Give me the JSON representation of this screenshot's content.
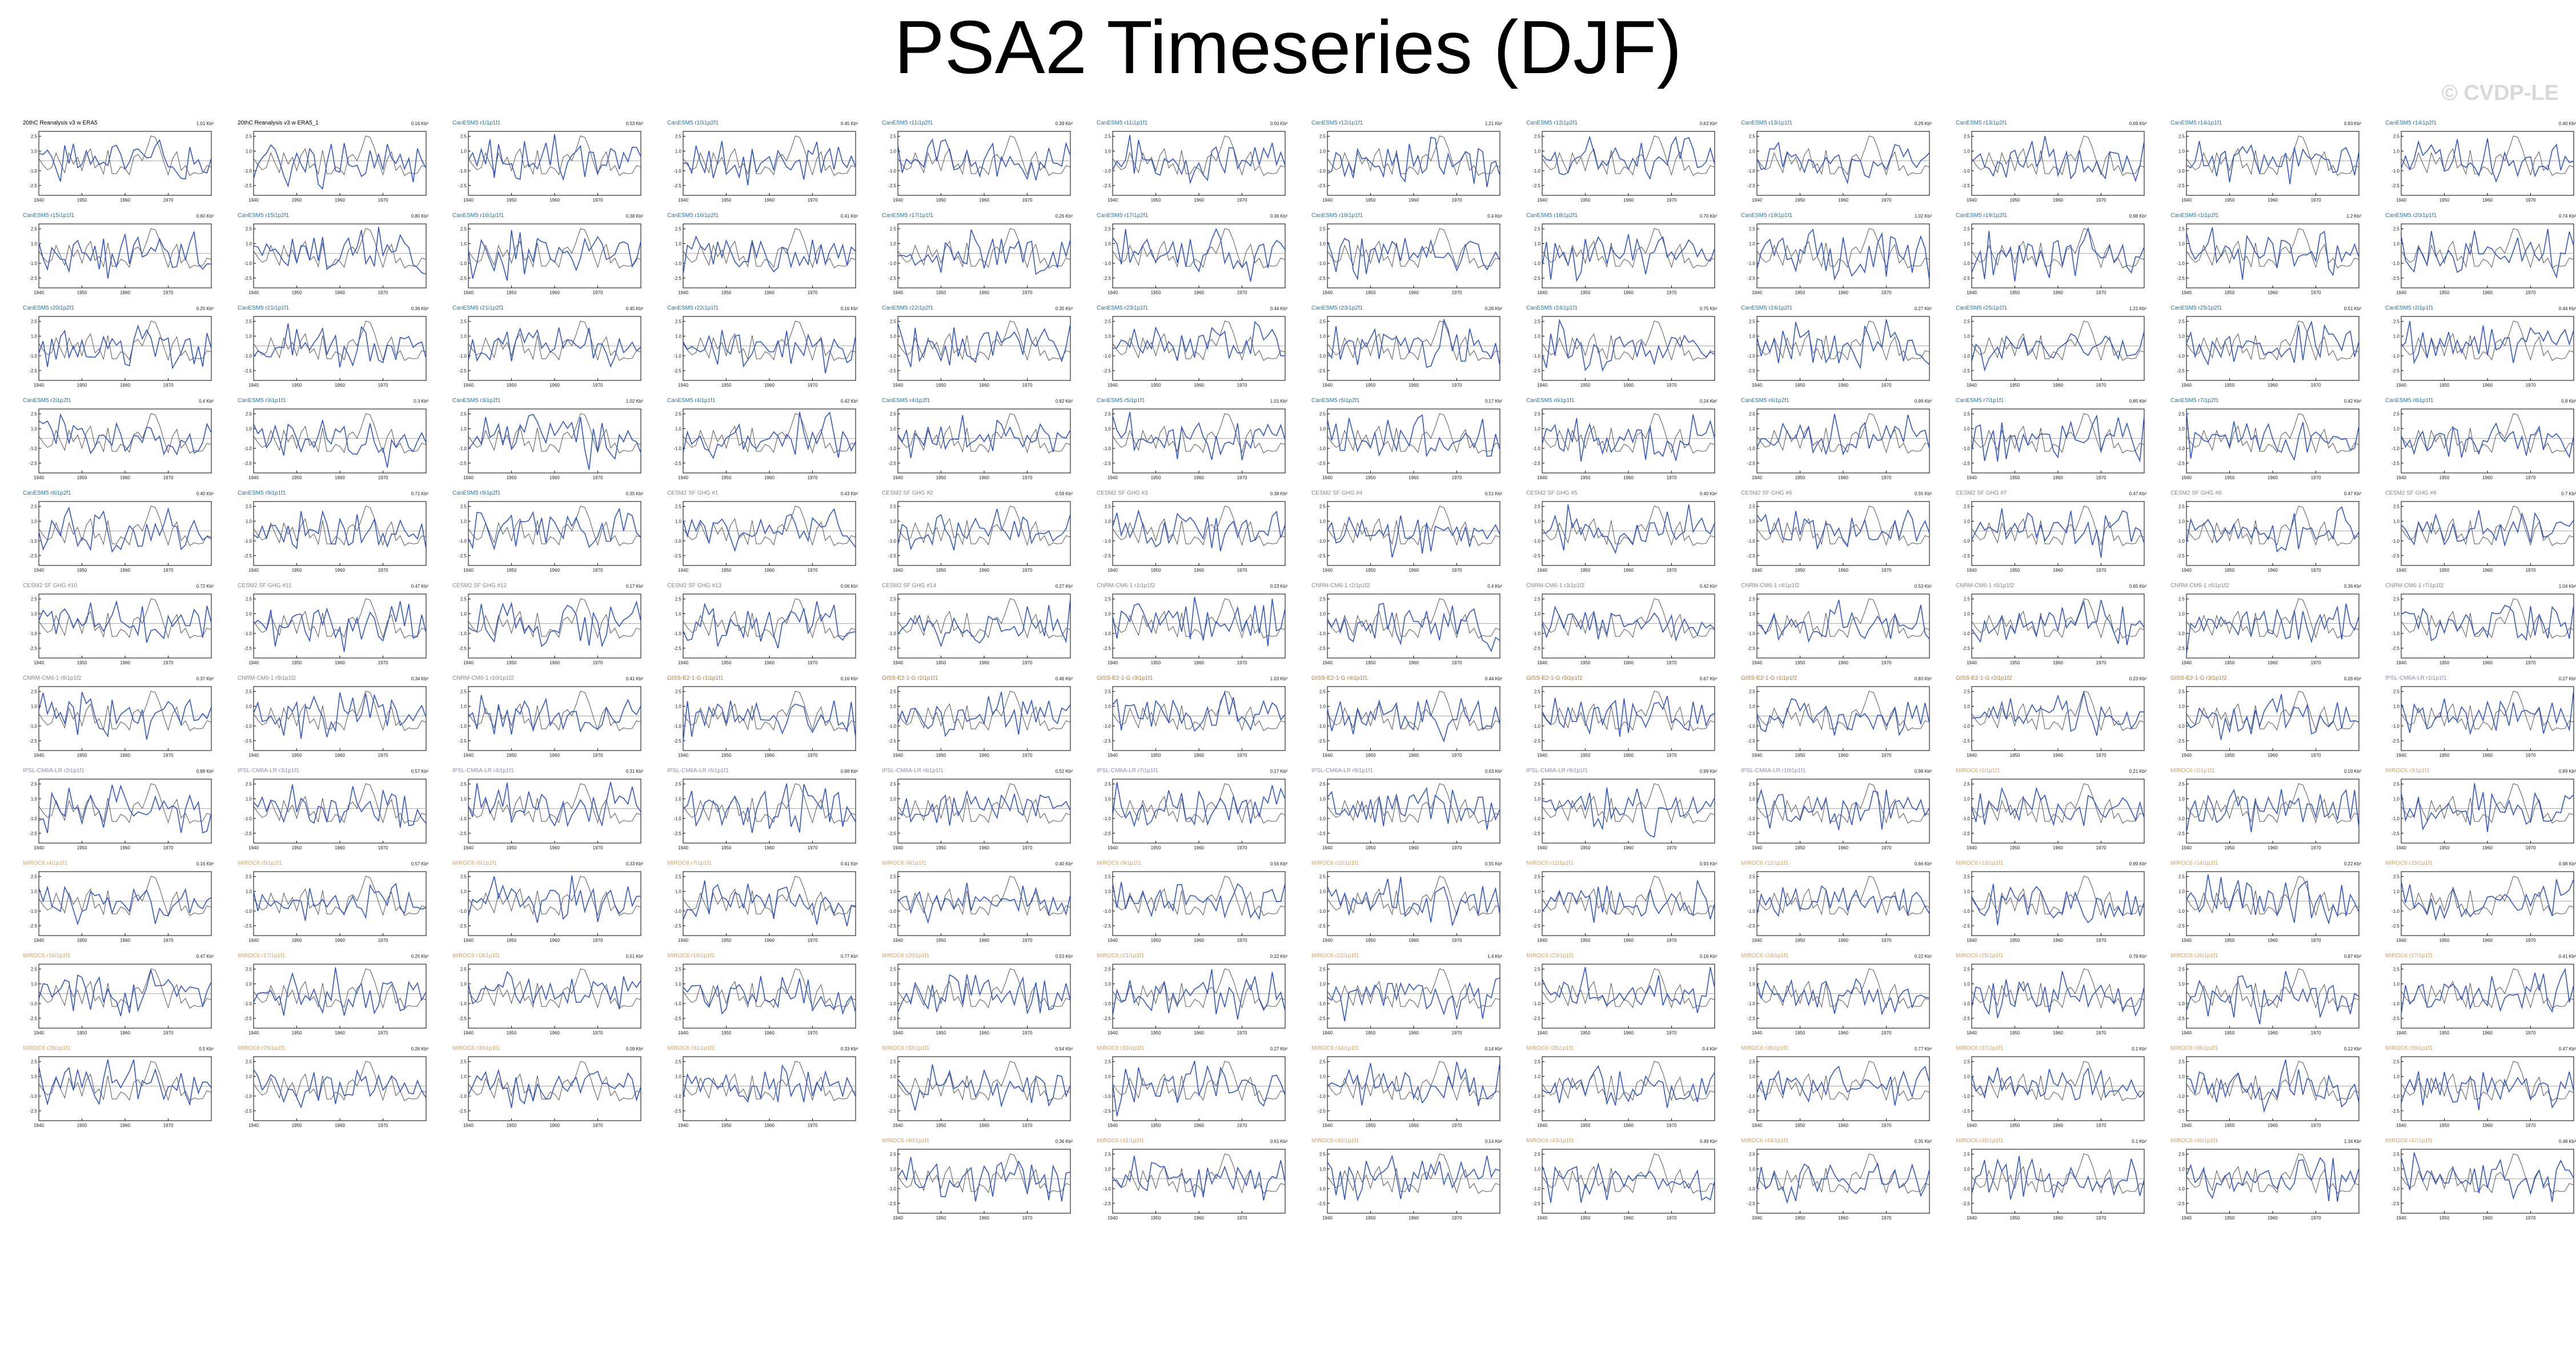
{
  "title": "PSA2 Timeseries (DJF)",
  "watermark": "© CVDP-LE",
  "colors": {
    "model": "#3356c8",
    "observed": "#555555",
    "zero_line": "#999999"
  },
  "chart_data": {
    "type": "line",
    "x_range": [
      1940,
      1980
    ],
    "x_ticks": [
      "1940",
      "1950",
      "1960",
      "1970"
    ],
    "ylim": [
      -3.5,
      3
    ],
    "y_ticks": [
      "2.5",
      "1.0",
      "-1.0",
      "-2.5"
    ],
    "panels": [
      {
        "title": "20thC Reanalysis v3 w ERA5",
        "std": "1.01 Kb²",
        "color": "#000000",
        "seed": 1
      },
      {
        "title": "20thC Reanalysis v3 w ERA5_1",
        "std": "0.16 Kb²",
        "color": "#000000",
        "seed": 2
      },
      {
        "title": "CanESM5 r1i1p1f1",
        "std": "0.53 Kb²",
        "color": "#1f77b4",
        "seed": 3
      },
      {
        "title": "CanESM5 r10i1p2f1",
        "std": "0.45 Kb²",
        "color": "#1f77b4",
        "seed": 4
      },
      {
        "title": "CanESM5 r11i1p2f1",
        "std": "0.39 Kb²",
        "color": "#1f77b4",
        "seed": 5
      },
      {
        "title": "CanESM5 r11i1p1f1",
        "std": "0.50 Kb²",
        "color": "#1f77b4",
        "seed": 6
      },
      {
        "title": "CanESM5 r12i1p1f1",
        "std": "1.21 Kb²",
        "color": "#1f77b4",
        "seed": 7
      },
      {
        "title": "CanESM5 r12i1p2f1",
        "std": "0.63 Kb²",
        "color": "#1f77b4",
        "seed": 8
      },
      {
        "title": "CanESM5 r13i1p1f1",
        "std": "0.29 Kb²",
        "color": "#1f77b4",
        "seed": 9
      },
      {
        "title": "CanESM5 r13i1p2f1",
        "std": "0.69 Kb²",
        "color": "#1f77b4",
        "seed": 10
      },
      {
        "title": "CanESM5 r14i1p1f1",
        "std": "0.83 Kb²",
        "color": "#1f77b4",
        "seed": 11
      },
      {
        "title": "CanESM5 r14i1p2f1",
        "std": "0.40 Kb²",
        "color": "#1f77b4",
        "seed": 12
      },
      {
        "title": "CanESM5 r15i1p1f1",
        "std": "0.60 Kb²",
        "color": "#1f77b4",
        "seed": 13
      },
      {
        "title": "CanESM5 r15i1p2f1",
        "std": "0.80 Kb²",
        "color": "#1f77b4",
        "seed": 14
      },
      {
        "title": "CanESM5 r16i1p1f1",
        "std": "0.38 Kb²",
        "color": "#1f77b4",
        "seed": 15
      },
      {
        "title": "CanESM5 r16i1p2f1",
        "std": "0.41 Kb²",
        "color": "#1f77b4",
        "seed": 16
      },
      {
        "title": "CanESM5 r17i1p1f1",
        "std": "0.26 Kb²",
        "color": "#1f77b4",
        "seed": 17
      },
      {
        "title": "CanESM5 r17i1p2f1",
        "std": "0.36 Kb²",
        "color": "#1f77b4",
        "seed": 18
      },
      {
        "title": "CanESM5 r18i1p1f1",
        "std": "0.4 Kb²",
        "color": "#1f77b4",
        "seed": 19
      },
      {
        "title": "CanESM5 r18i1p2f1",
        "std": "0.70 Kb²",
        "color": "#1f77b4",
        "seed": 20
      },
      {
        "title": "CanESM5 r19i1p1f1",
        "std": "1.02 Kb²",
        "color": "#1f77b4",
        "seed": 21
      },
      {
        "title": "CanESM5 r19i1p2f1",
        "std": "0.98 Kb²",
        "color": "#1f77b4",
        "seed": 22
      },
      {
        "title": "CanESM5 r1i1p2f1",
        "std": "1.2 Kb²",
        "color": "#1f77b4",
        "seed": 23
      },
      {
        "title": "CanESM5 r20i1p1f1",
        "std": "0.74 Kb²",
        "color": "#1f77b4",
        "seed": 24
      },
      {
        "title": "CanESM5 r20i1p2f1",
        "std": "0.25 Kb²",
        "color": "#1f77b4",
        "seed": 25
      },
      {
        "title": "CanESM5 r21i1p1f1",
        "std": "0.36 Kb²",
        "color": "#1f77b4",
        "seed": 26
      },
      {
        "title": "CanESM5 r21i1p2f1",
        "std": "0.45 Kb²",
        "color": "#1f77b4",
        "seed": 27
      },
      {
        "title": "CanESM5 r22i1p1f1",
        "std": "0.16 Kb²",
        "color": "#1f77b4",
        "seed": 28
      },
      {
        "title": "CanESM5 r22i1p2f1",
        "std": "0.35 Kb²",
        "color": "#1f77b4",
        "seed": 29
      },
      {
        "title": "CanESM5 r23i1p1f1",
        "std": "0.44 Kb²",
        "color": "#1f77b4",
        "seed": 30
      },
      {
        "title": "CanESM5 r23i1p2f1",
        "std": "0.26 Kb²",
        "color": "#1f77b4",
        "seed": 31
      },
      {
        "title": "CanESM5 r24i1p1f1",
        "std": "0.75 Kb²",
        "color": "#1f77b4",
        "seed": 32
      },
      {
        "title": "CanESM5 r24i1p2f1",
        "std": "0.27 Kb²",
        "color": "#1f77b4",
        "seed": 33
      },
      {
        "title": "CanESM5 r25i1p1f1",
        "std": "1.21 Kb²",
        "color": "#1f77b4",
        "seed": 34
      },
      {
        "title": "CanESM5 r25i1p2f1",
        "std": "0.51 Kb²",
        "color": "#1f77b4",
        "seed": 35
      },
      {
        "title": "CanESM5 r2i1p1f1",
        "std": "0.44 Kb²",
        "color": "#1f77b4",
        "seed": 36
      },
      {
        "title": "CanESM5 r2i1p2f1",
        "std": "0.4 Kb²",
        "color": "#1f77b4",
        "seed": 37
      },
      {
        "title": "CanESM5 r3i1p1f1",
        "std": "0.3 Kb²",
        "color": "#1f77b4",
        "seed": 38
      },
      {
        "title": "CanESM5 r3i1p2f1",
        "std": "1.02 Kb²",
        "color": "#1f77b4",
        "seed": 39
      },
      {
        "title": "CanESM5 r4i1p1f1",
        "std": "0.42 Kb²",
        "color": "#1f77b4",
        "seed": 40
      },
      {
        "title": "CanESM5 r4i1p2f1",
        "std": "0.62 Kb²",
        "color": "#1f77b4",
        "seed": 41
      },
      {
        "title": "CanESM5 r5i1p1f1",
        "std": "1.01 Kb²",
        "color": "#1f77b4",
        "seed": 42
      },
      {
        "title": "CanESM5 r5i1p2f1",
        "std": "0.17 Kb²",
        "color": "#1f77b4",
        "seed": 43
      },
      {
        "title": "CanESM5 r6i1p1f1",
        "std": "0.24 Kb²",
        "color": "#1f77b4",
        "seed": 44
      },
      {
        "title": "CanESM5 r6i1p2f1",
        "std": "0.99 Kb²",
        "color": "#1f77b4",
        "seed": 45
      },
      {
        "title": "CanESM5 r7i1p1f1",
        "std": "0.85 Kb²",
        "color": "#1f77b4",
        "seed": 46
      },
      {
        "title": "CanESM5 r7i1p2f1",
        "std": "0.42 Kb²",
        "color": "#1f77b4",
        "seed": 47
      },
      {
        "title": "CanESM5 r8i1p1f1",
        "std": "0.8 Kb²",
        "color": "#1f77b4",
        "seed": 48
      },
      {
        "title": "CanESM5 r8i1p2f1",
        "std": "0.40 Kb²",
        "color": "#1f77b4",
        "seed": 49
      },
      {
        "title": "CanESM5 r9i1p1f1",
        "std": "0.71 Kb²",
        "color": "#1f77b4",
        "seed": 50
      },
      {
        "title": "CanESM5 r9i1p2f1",
        "std": "0.35 Kb²",
        "color": "#1f77b4",
        "seed": 51
      },
      {
        "title": "CESM2 SF GHG #1",
        "std": "0.43 Kb²",
        "color": "#888888",
        "seed": 52
      },
      {
        "title": "CESM2 SF GHG #2",
        "std": "0.59 Kb²",
        "color": "#888888",
        "seed": 53
      },
      {
        "title": "CESM2 SF GHG #3",
        "std": "0.38 Kb²",
        "color": "#888888",
        "seed": 54
      },
      {
        "title": "CESM2 SF GHG #4",
        "std": "0.51 Kb²",
        "color": "#888888",
        "seed": 55
      },
      {
        "title": "CESM2 SF GHG #5",
        "std": "0.40 Kb²",
        "color": "#888888",
        "seed": 56
      },
      {
        "title": "CESM2 SF GHG #6",
        "std": "0.55 Kb²",
        "color": "#888888",
        "seed": 57
      },
      {
        "title": "CESM2 SF GHG #7",
        "std": "0.47 Kb²",
        "color": "#888888",
        "seed": 58
      },
      {
        "title": "CESM2 SF GHG #8",
        "std": "0.47 Kb²",
        "color": "#888888",
        "seed": 59
      },
      {
        "title": "CESM2 SF GHG #9",
        "std": "0.7 Kb²",
        "color": "#888888",
        "seed": 60
      },
      {
        "title": "CESM2 SF GHG #10",
        "std": "0.72 Kb²",
        "color": "#888888",
        "seed": 61
      },
      {
        "title": "CESM2 SF GHG #11",
        "std": "0.47 Kb²",
        "color": "#888888",
        "seed": 62
      },
      {
        "title": "CESM2 SF GHG #12",
        "std": "0.17 Kb²",
        "color": "#888888",
        "seed": 63
      },
      {
        "title": "CESM2 SF GHG #13",
        "std": "0.06 Kb²",
        "color": "#888888",
        "seed": 64
      },
      {
        "title": "CESM2 SF GHG #14",
        "std": "0.27 Kb²",
        "color": "#888888",
        "seed": 65
      },
      {
        "title": "CNRM-CM6-1 r1i1p1f2",
        "std": "0.23 Kb²",
        "color": "#888888",
        "seed": 66
      },
      {
        "title": "CNRM-CM6-1 r2i1p1f2",
        "std": "0.4 Kb²",
        "color": "#888888",
        "seed": 67
      },
      {
        "title": "CNRM-CM6-1 r3i1p1f2",
        "std": "0.42 Kb²",
        "color": "#888888",
        "seed": 68
      },
      {
        "title": "CNRM-CM6-1 r4i1p1f2",
        "std": "0.53 Kb²",
        "color": "#888888",
        "seed": 69
      },
      {
        "title": "CNRM-CM6-1 r5i1p1f2",
        "std": "0.65 Kb²",
        "color": "#888888",
        "seed": 70
      },
      {
        "title": "CNRM-CM6-1 r6i1p1f2",
        "std": "0.36 Kb²",
        "color": "#888888",
        "seed": 71
      },
      {
        "title": "CNRM-CM6-1 r7i1p1f2",
        "std": "1.04 Kb²",
        "color": "#888888",
        "seed": 72
      },
      {
        "title": "CNRM-CM6-1 r8i1p1f2",
        "std": "0.37 Kb²",
        "color": "#888888",
        "seed": 73
      },
      {
        "title": "CNRM-CM6-1 r9i1p1f2",
        "std": "0.34 Kb²",
        "color": "#888888",
        "seed": 74
      },
      {
        "title": "CNRM-CM6-1 r10i1p1f2",
        "std": "0.41 Kb²",
        "color": "#888888",
        "seed": 75
      },
      {
        "title": "GISS-E2-1-G r1i1p1f1",
        "std": "0.16 Kb²",
        "color": "#c8782a",
        "seed": 76
      },
      {
        "title": "GISS-E2-1-G r2i1p1f1",
        "std": "0.46 Kb²",
        "color": "#c8782a",
        "seed": 77
      },
      {
        "title": "GISS-E2-1-G r3i1p1f1",
        "std": "1.03 Kb²",
        "color": "#c8782a",
        "seed": 78
      },
      {
        "title": "GISS-E2-1-G r4i1p1f1",
        "std": "0.44 Kb²",
        "color": "#c8782a",
        "seed": 79
      },
      {
        "title": "GISS-E2-1-G r5i1p1f2",
        "std": "0.67 Kb²",
        "color": "#c8782a",
        "seed": 80
      },
      {
        "title": "GISS-E2-1-G r1i1p1f2",
        "std": "0.83 Kb²",
        "color": "#c8782a",
        "seed": 81
      },
      {
        "title": "GISS-E2-1-G r2i1p1f2",
        "std": "0.23 Kb²",
        "color": "#c8782a",
        "seed": 82
      },
      {
        "title": "GISS-E2-1-G r3i1p1f2",
        "std": "0.26 Kb²",
        "color": "#c8782a",
        "seed": 83
      },
      {
        "title": "IPSL-CM6A-LR r1i1p1f1",
        "std": "0.27 Kb²",
        "color": "#8a8ac8",
        "seed": 84
      },
      {
        "title": "IPSL-CM6A-LR r2i1p1f1",
        "std": "0.88 Kb²",
        "color": "#8a8ac8",
        "seed": 85
      },
      {
        "title": "IPSL-CM6A-LR r3i1p1f1",
        "std": "0.57 Kb²",
        "color": "#8a8ac8",
        "seed": 86
      },
      {
        "title": "IPSL-CM6A-LR r4i1p1f1",
        "std": "0.31 Kb²",
        "color": "#8a8ac8",
        "seed": 87
      },
      {
        "title": "IPSL-CM6A-LR r5i1p1f1",
        "std": "0.98 Kb²",
        "color": "#8a8ac8",
        "seed": 88
      },
      {
        "title": "IPSL-CM6A-LR r6i1p1f1",
        "std": "0.52 Kb²",
        "color": "#8a8ac8",
        "seed": 89
      },
      {
        "title": "IPSL-CM6A-LR r7i1p1f1",
        "std": "0.17 Kb²",
        "color": "#8a8ac8",
        "seed": 90
      },
      {
        "title": "IPSL-CM6A-LR r8i1p1f1",
        "std": "0.63 Kb²",
        "color": "#8a8ac8",
        "seed": 91
      },
      {
        "title": "IPSL-CM6A-LR r9i1p1f1",
        "std": "0.99 Kb²",
        "color": "#8a8ac8",
        "seed": 92
      },
      {
        "title": "IPSL-CM6A-LR r10i1p1f1",
        "std": "0.98 Kb²",
        "color": "#8a8ac8",
        "seed": 93
      },
      {
        "title": "MIROC6 r1i1p1f1",
        "std": "0.21 Kb²",
        "color": "#e0a060",
        "seed": 94
      },
      {
        "title": "MIROC6 r2i1p1f1",
        "std": "0.19 Kb²",
        "color": "#e0a060",
        "seed": 95
      },
      {
        "title": "MIROC6 r3i1p1f1",
        "std": "0.89 Kb²",
        "color": "#e0a060",
        "seed": 96
      },
      {
        "title": "MIROC6 r4i1p1f1",
        "std": "0.16 Kb²",
        "color": "#e0a060",
        "seed": 97
      },
      {
        "title": "MIROC6 r5i1p1f1",
        "std": "0.57 Kb²",
        "color": "#e0a060",
        "seed": 98
      },
      {
        "title": "MIROC6 r6i1p1f1",
        "std": "0.33 Kb²",
        "color": "#e0a060",
        "seed": 99
      },
      {
        "title": "MIROC6 r7i1p1f1",
        "std": "0.41 Kb²",
        "color": "#e0a060",
        "seed": 100
      },
      {
        "title": "MIROC6 r8i1p1f1",
        "std": "0.40 Kb²",
        "color": "#e0a060",
        "seed": 101
      },
      {
        "title": "MIROC6 r9i1p1f1",
        "std": "0.56 Kb²",
        "color": "#e0a060",
        "seed": 102
      },
      {
        "title": "MIROC6 r10i1p1f1",
        "std": "0.55 Kb²",
        "color": "#e0a060",
        "seed": 103
      },
      {
        "title": "MIROC6 r11i1p1f1",
        "std": "0.93 Kb²",
        "color": "#e0a060",
        "seed": 104
      },
      {
        "title": "MIROC6 r12i1p1f1",
        "std": "0.66 Kb²",
        "color": "#e0a060",
        "seed": 105
      },
      {
        "title": "MIROC6 r13i1p1f1",
        "std": "0.99 Kb²",
        "color": "#e0a060",
        "seed": 106
      },
      {
        "title": "MIROC6 r14i1p1f1",
        "std": "0.22 Kb²",
        "color": "#e0a060",
        "seed": 107
      },
      {
        "title": "MIROC6 r15i1p1f1",
        "std": "0.98 Kb²",
        "color": "#e0a060",
        "seed": 108
      },
      {
        "title": "MIROC6 r16i1p1f1",
        "std": "0.47 Kb²",
        "color": "#e0a060",
        "seed": 109
      },
      {
        "title": "MIROC6 r17i1p1f1",
        "std": "0.25 Kb²",
        "color": "#e0a060",
        "seed": 110
      },
      {
        "title": "MIROC6 r18i1p1f1",
        "std": "0.51 Kb²",
        "color": "#e0a060",
        "seed": 111
      },
      {
        "title": "MIROC6 r19i1p1f1",
        "std": "0.77 Kb²",
        "color": "#e0a060",
        "seed": 112
      },
      {
        "title": "MIROC6 r20i1p1f1",
        "std": "0.53 Kb²",
        "color": "#e0a060",
        "seed": 113
      },
      {
        "title": "MIROC6 r21i1p1f1",
        "std": "0.22 Kb²",
        "color": "#e0a060",
        "seed": 114
      },
      {
        "title": "MIROC6 r22i1p1f1",
        "std": "1.4 Kb²",
        "color": "#e0a060",
        "seed": 115
      },
      {
        "title": "MIROC6 r23i1p1f1",
        "std": "0.16 Kb²",
        "color": "#e0a060",
        "seed": 116
      },
      {
        "title": "MIROC6 r24i1p1f1",
        "std": "0.22 Kb²",
        "color": "#e0a060",
        "seed": 117
      },
      {
        "title": "MIROC6 r25i1p1f1",
        "std": "0.78 Kb²",
        "color": "#e0a060",
        "seed": 118
      },
      {
        "title": "MIROC6 r26i1p1f1",
        "std": "0.87 Kb²",
        "color": "#e0a060",
        "seed": 119
      },
      {
        "title": "MIROC6 r27i1p1f1",
        "std": "0.41 Kb²",
        "color": "#e0a060",
        "seed": 120
      },
      {
        "title": "MIROC6 r28i1p1f1",
        "std": "0.5 Kb²",
        "color": "#e0a060",
        "seed": 121
      },
      {
        "title": "MIROC6 r29i1p1f1",
        "std": "0.26 Kb²",
        "color": "#e0a060",
        "seed": 122
      },
      {
        "title": "MIROC6 r30i1p1f1",
        "std": "0.09 Kb²",
        "color": "#e0a060",
        "seed": 123
      },
      {
        "title": "MIROC6 r31i1p1f1",
        "std": "0.33 Kb²",
        "color": "#e0a060",
        "seed": 124
      },
      {
        "title": "MIROC6 r32i1p1f1",
        "std": "0.54 Kb²",
        "color": "#e0a060",
        "seed": 125
      },
      {
        "title": "MIROC6 r33i1p1f1",
        "std": "0.27 Kb²",
        "color": "#e0a060",
        "seed": 126
      },
      {
        "title": "MIROC6 r34i1p1f1",
        "std": "0.14 Kb²",
        "color": "#e0a060",
        "seed": 127
      },
      {
        "title": "MIROC6 r35i1p1f1",
        "std": "0.4 Kb²",
        "color": "#e0a060",
        "seed": 128
      },
      {
        "title": "MIROC6 r36i1p1f1",
        "std": "0.77 Kb²",
        "color": "#e0a060",
        "seed": 129
      },
      {
        "title": "MIROC6 r37i1p1f1",
        "std": "0.1 Kb²",
        "color": "#e0a060",
        "seed": 130
      },
      {
        "title": "MIROC6 r38i1p1f1",
        "std": "0.12 Kb²",
        "color": "#e0a060",
        "seed": 131
      },
      {
        "title": "MIROC6 r39i1p1f1",
        "std": "0.47 Kb²",
        "color": "#e0a060",
        "seed": 132
      },
      {
        "title": "MIROC6 r40i1p1f1",
        "std": "0.36 Kb²",
        "color": "#e0a060",
        "seed": 133
      },
      {
        "title": "MIROC6 r41i1p1f1",
        "std": "0.61 Kb²",
        "color": "#e0a060",
        "seed": 134
      },
      {
        "title": "MIROC6 r42i1p1f1",
        "std": "0.14 Kb²",
        "color": "#e0a060",
        "seed": 135
      },
      {
        "title": "MIROC6 r43i1p1f1",
        "std": "0.49 Kb²",
        "color": "#e0a060",
        "seed": 136
      },
      {
        "title": "MIROC6 r44i1p1f1",
        "std": "0.35 Kb²",
        "color": "#e0a060",
        "seed": 137
      },
      {
        "title": "MIROC6 r45i1p1f1",
        "std": "0.1 Kb²",
        "color": "#e0a060",
        "seed": 138
      },
      {
        "title": "MIROC6 r46i1p1f1",
        "std": "1.34 Kb²",
        "color": "#e0a060",
        "seed": 139
      },
      {
        "title": "MIROC6 r47i1p1f1",
        "std": "0.48 Kb²",
        "color": "#e0a060",
        "seed": 140
      }
    ]
  }
}
